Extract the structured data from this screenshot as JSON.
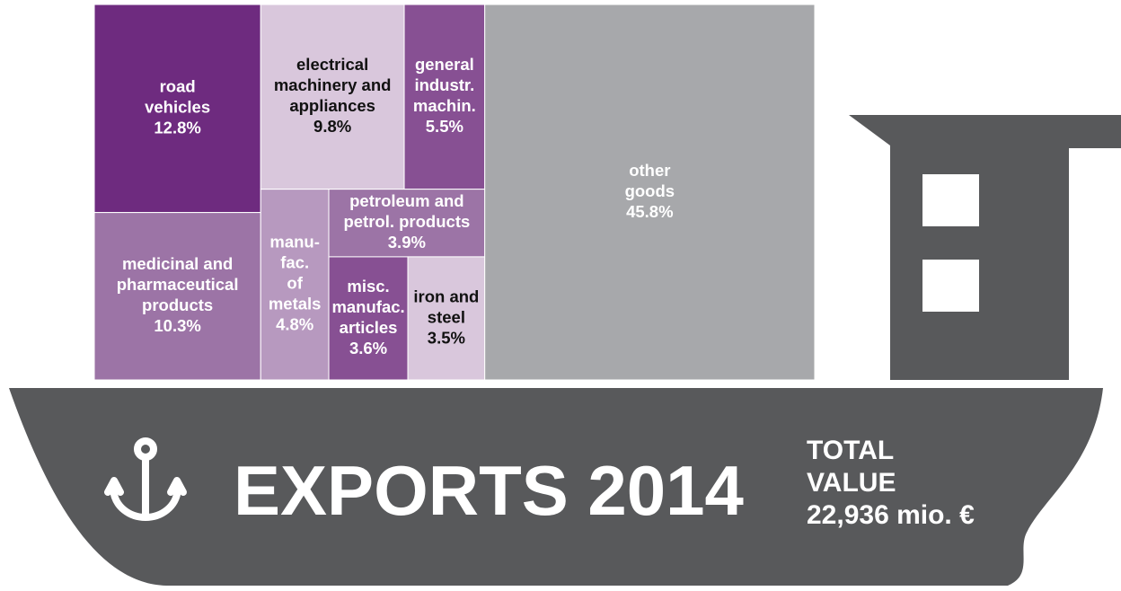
{
  "chart_data": {
    "type": "treemap",
    "title": "EXPORTS 2014",
    "total_label_lines": [
      "TOTAL",
      "VALUE"
    ],
    "total_value": "22,936 mio. €",
    "items": [
      {
        "label_lines": [
          "road",
          "vehicles"
        ],
        "value": 12.8,
        "value_label": "12.8%",
        "color": "#6e2b7f"
      },
      {
        "label_lines": [
          "medicinal and",
          "pharmaceutical",
          "products"
        ],
        "value": 10.3,
        "value_label": "10.3%",
        "color": "#9c74a6"
      },
      {
        "label_lines": [
          "electrical",
          "machinery and",
          "appliances"
        ],
        "value": 9.8,
        "value_label": "9.8%",
        "color": "#d9c7dc"
      },
      {
        "label_lines": [
          "general",
          "industr.",
          "machin."
        ],
        "value": 5.5,
        "value_label": "5.5%",
        "color": "#875093"
      },
      {
        "label_lines": [
          "manu-",
          "fac.",
          "of",
          "metals"
        ],
        "value": 4.8,
        "value_label": "4.8%",
        "color": "#b799bf"
      },
      {
        "label_lines": [
          "petroleum and",
          "petrol. products"
        ],
        "value": 3.9,
        "value_label": "3.9%",
        "color": "#9c74a6"
      },
      {
        "label_lines": [
          "misc.",
          "manufac.",
          "articles"
        ],
        "value": 3.6,
        "value_label": "3.6%",
        "color": "#875093"
      },
      {
        "label_lines": [
          "iron and",
          "steel"
        ],
        "value": 3.5,
        "value_label": "3.5%",
        "color": "#d9c7dc"
      },
      {
        "label_lines": [
          "other",
          "goods"
        ],
        "value": 45.8,
        "value_label": "45.8%",
        "color": "#a7a8ab"
      }
    ]
  }
}
